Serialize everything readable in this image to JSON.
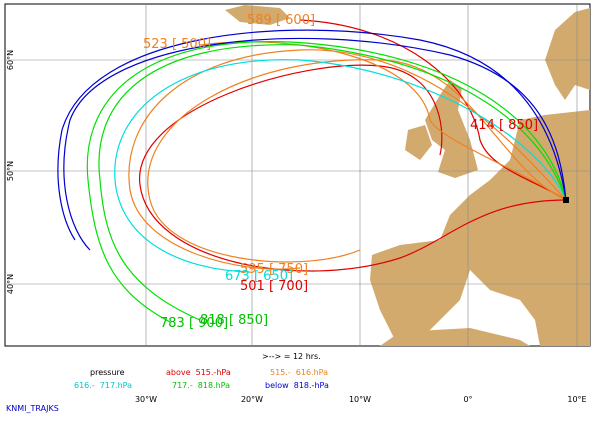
{
  "map": {
    "lat_labels": [
      "60°N",
      "50°N",
      "40°N"
    ],
    "lon_labels": [
      "30°W",
      "20°W",
      "10°W",
      "0°",
      "10°E"
    ],
    "trajectory_labels": [
      "589 [ 600]",
      "523 [ 500]",
      "414 [ 850]",
      "595 [ 750]",
      "673 [ 650]",
      "501 [ 700]",
      "783 [ 900]",
      "818 [ 850]"
    ]
  },
  "legend": {
    "title": "pressure",
    "arrow_note": ">--> = 12 hrs.",
    "entries": [
      "above  515.-hPa",
      "515.-  616.hPa",
      "616.-  717.hPa",
      "717.-  818.hPa",
      "below  818.-hPa"
    ]
  },
  "footer": "KNMI_TRAJKS"
}
